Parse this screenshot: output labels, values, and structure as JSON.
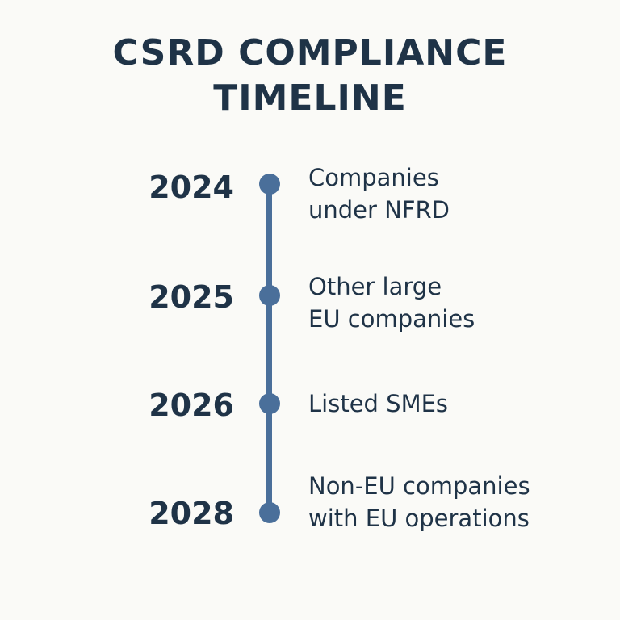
{
  "title": {
    "line1": "CSRD COMPLIANCE",
    "line2": "TIMELINE"
  },
  "milestones": [
    {
      "year": "2024",
      "description": [
        "Companies",
        "under NFRD"
      ]
    },
    {
      "year": "2025",
      "description": [
        "Other large",
        "EU companies"
      ]
    },
    {
      "year": "2026",
      "description": [
        "Listed SMEs"
      ]
    },
    {
      "year": "2028",
      "description": [
        "Non-EU companies",
        "with EU operations"
      ]
    }
  ],
  "colors": {
    "text": "#1f3347",
    "timeline": "#4a6f9a",
    "background": "#fafaf7"
  }
}
